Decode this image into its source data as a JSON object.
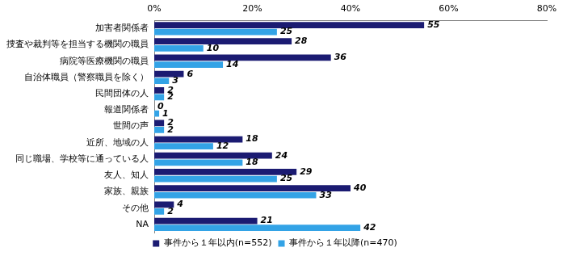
{
  "chart_data": {
    "type": "bar",
    "orientation": "horizontal",
    "categories": [
      "加害者関係者",
      "捜査や裁判等を担当する機関の職員",
      "病院等医療機関の職員",
      "自治体職員（警察職員を除く）",
      "民間団体の人",
      "報道関係者",
      "世間の声",
      "近所、地域の人",
      "同じ職場、学校等に通っている人",
      "友人、知人",
      "家族、親族",
      "その他",
      "NA"
    ],
    "series": [
      {
        "name": "事件から１年以内(n=552)",
        "color": "#1b1b72",
        "values": [
          55,
          28,
          36,
          6,
          2,
          0,
          2,
          18,
          24,
          29,
          40,
          4,
          21
        ]
      },
      {
        "name": "事件から１年以降(n=470)",
        "color": "#33a3e6",
        "values": [
          25,
          10,
          14,
          3,
          2,
          1,
          2,
          12,
          18,
          25,
          33,
          2,
          42
        ]
      }
    ],
    "xlim": [
      0,
      80
    ],
    "xticks": [
      {
        "value": 0,
        "label": "0%"
      },
      {
        "value": 20,
        "label": "20%"
      },
      {
        "value": 40,
        "label": "40%"
      },
      {
        "value": 60,
        "label": "60%"
      },
      {
        "value": 80,
        "label": "80%"
      }
    ],
    "grid": false,
    "legend": "bottom",
    "data_labels": true
  }
}
